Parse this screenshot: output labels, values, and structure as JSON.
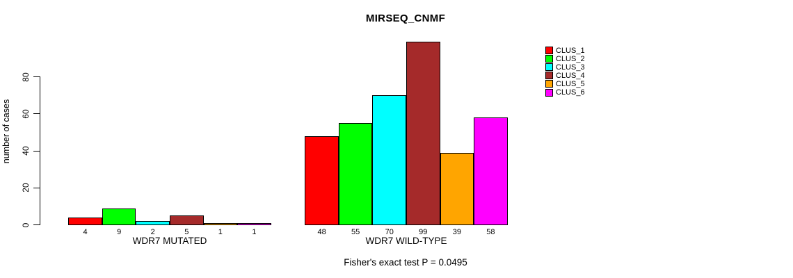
{
  "chart_data": {
    "type": "bar",
    "title": "MIRSEQ_CNMF",
    "ylabel": "number of cases",
    "xlabel": "",
    "yticks": [
      0,
      20,
      40,
      60,
      80
    ],
    "ylim": [
      0,
      85
    ],
    "grid": false,
    "bar_value_labels_shown": true,
    "groups": [
      {
        "label": "WDR7 MUTATED",
        "values": [
          4,
          9,
          2,
          5,
          1,
          1
        ]
      },
      {
        "label": "WDR7 WILD-TYPE",
        "values": [
          48,
          55,
          70,
          99,
          39,
          58
        ]
      }
    ],
    "series_colors": [
      "#FF0000",
      "#00FF00",
      "#00FFFF",
      "#A52A2A",
      "#FFA500",
      "#FF00FF"
    ],
    "legend": {
      "position": "top-right",
      "entries": [
        {
          "label": "CLUS_1",
          "color": "#FF0000"
        },
        {
          "label": "CLUS_2",
          "color": "#00FF00"
        },
        {
          "label": "CLUS_3",
          "color": "#00FFFF"
        },
        {
          "label": "CLUS_4",
          "color": "#A52A2A"
        },
        {
          "label": "CLUS_5",
          "color": "#FFA500"
        },
        {
          "label": "CLUS_6",
          "color": "#FF00FF"
        }
      ]
    },
    "annotation": "Fisher's exact test P = 0.0495",
    "axis_color": "#000000",
    "background_color": "#FFFFFF"
  }
}
